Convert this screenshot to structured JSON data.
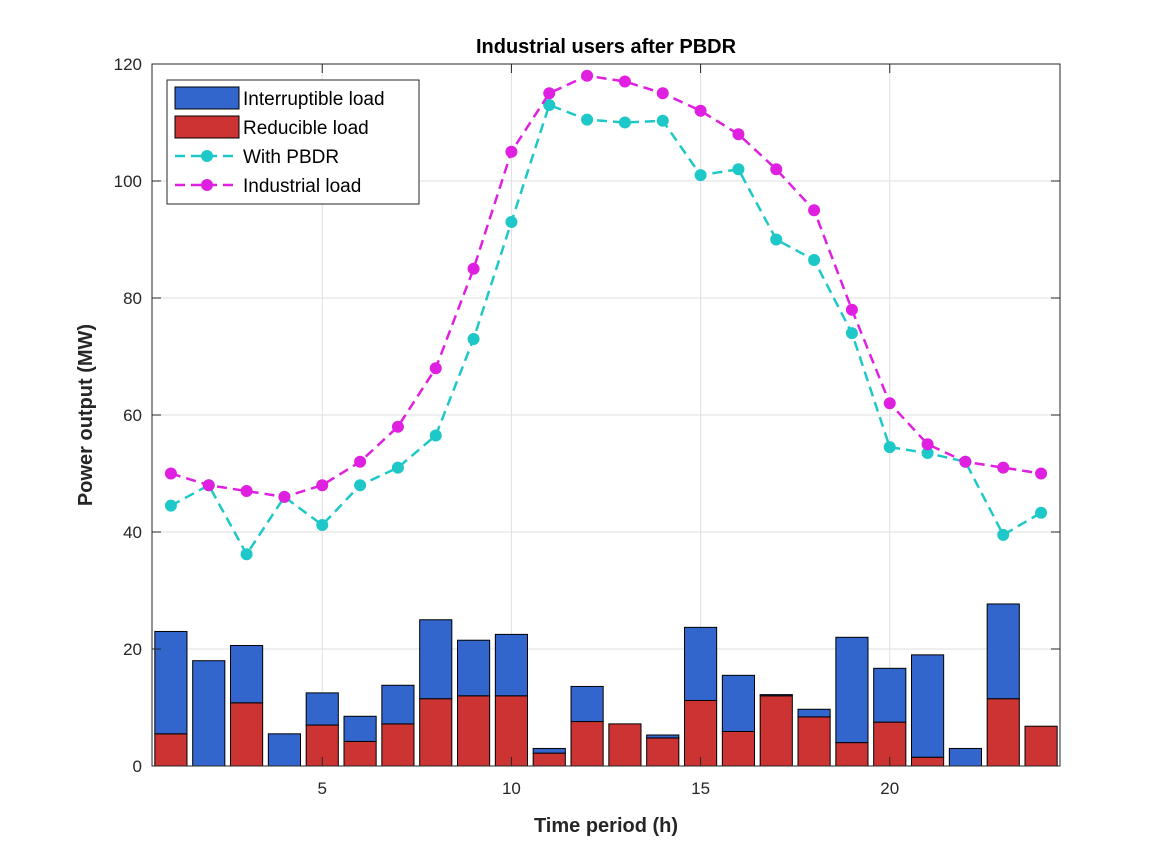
{
  "chart_data": {
    "type": "bar",
    "title": "Industrial users after PBDR",
    "xlabel": "Time period (h)",
    "ylabel": "Power output (MW)",
    "xlim": [
      0.5,
      24.5
    ],
    "ylim": [
      0,
      120
    ],
    "xticks": [
      5,
      10,
      15,
      20
    ],
    "yticks": [
      0,
      20,
      40,
      60,
      80,
      100,
      120
    ],
    "grid": true,
    "legend_position": "top-left",
    "x": [
      1,
      2,
      3,
      4,
      5,
      6,
      7,
      8,
      9,
      10,
      11,
      12,
      13,
      14,
      15,
      16,
      17,
      18,
      19,
      20,
      21,
      22,
      23,
      24
    ],
    "stacked_bars": [
      {
        "name": "Reducible load",
        "color": "#cc3333",
        "values": [
          5.5,
          0,
          10.8,
          0,
          7,
          4.2,
          7.2,
          11.5,
          12,
          12,
          2.2,
          7.6,
          7.2,
          4.8,
          11.2,
          5.9,
          12,
          8.4,
          4,
          7.5,
          1.5,
          0,
          11.5,
          6.8
        ]
      },
      {
        "name": "Interruptible load",
        "color": "#3366cc",
        "values": [
          17.5,
          18,
          9.8,
          5.5,
          5.5,
          4.3,
          6.6,
          13.5,
          9.5,
          10.5,
          0.8,
          6,
          0,
          0.5,
          12.5,
          9.6,
          0.2,
          1.3,
          18,
          9.2,
          17.5,
          3,
          16.2,
          0
        ]
      }
    ],
    "series": [
      {
        "name": "With PBDR",
        "color": "#1fc8c8",
        "style": "dashed",
        "values": [
          44.5,
          48,
          36.2,
          46,
          41.2,
          48,
          51,
          56.5,
          73,
          93,
          113,
          110.5,
          110,
          110.3,
          101,
          102,
          90,
          86.5,
          74,
          54.5,
          53.5,
          52,
          39.5,
          43.3
        ]
      },
      {
        "name": "Industrial load",
        "color": "#e020e0",
        "style": "dashed",
        "values": [
          50,
          48,
          47,
          46,
          48,
          52,
          58,
          68,
          85,
          105,
          115,
          118,
          117,
          115,
          112,
          108,
          102,
          95,
          78,
          62,
          55,
          52,
          51,
          50
        ]
      }
    ]
  }
}
